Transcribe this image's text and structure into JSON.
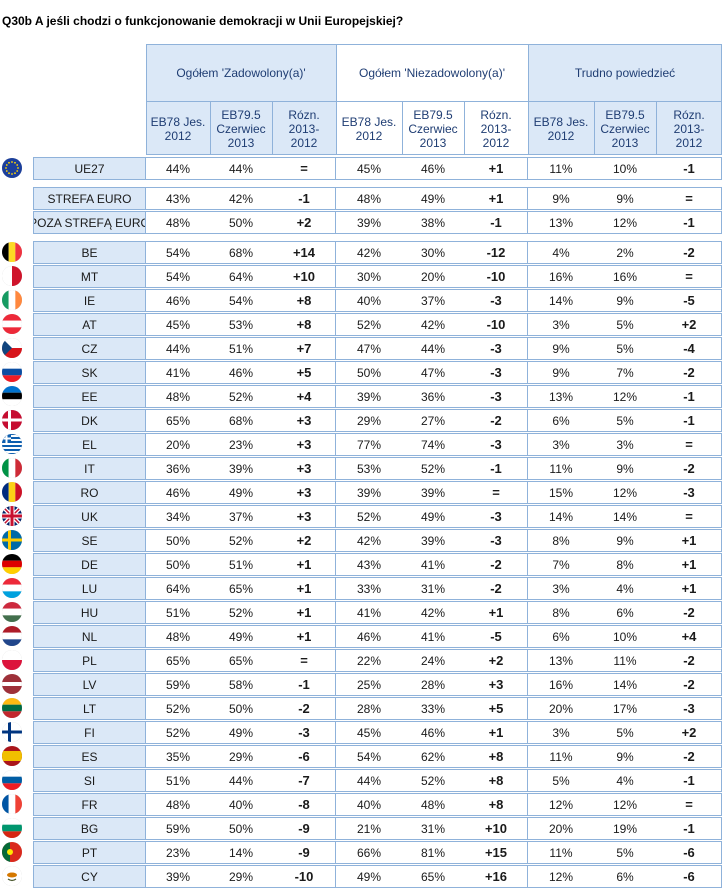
{
  "title": "Q30b A jeśli chodzi o funkcjonowanie demokracji w Unii Europejskiej?",
  "groups": [
    "Ogółem 'Zadowolony(a)'",
    "Ogółem 'Niezadowolony(a)'",
    "Trudno powiedzieć"
  ],
  "subheaders": [
    "EB78 Jes. 2012",
    "EB79.5 Czerwiec 2013",
    "Rózn. 2013-2012",
    "EB78 Jes. 2012",
    "EB79.5 Czerwiec 2013",
    "Rózn. 2013-2012",
    "EB78 Jes. 2012",
    "EB79.5 Czerwiec 2013",
    "Rózn. 2013-2012"
  ],
  "rows": [
    {
      "label": "UE27",
      "flag": "eu",
      "values": [
        "44%",
        "44%",
        "=",
        "45%",
        "46%",
        "+1",
        "11%",
        "10%",
        "-1"
      ]
    },
    {
      "label": "STREFA EURO",
      "flag": "",
      "values": [
        "43%",
        "42%",
        "-1",
        "48%",
        "49%",
        "+1",
        "9%",
        "9%",
        "="
      ]
    },
    {
      "label": "POZA STREFĄ EURO",
      "flag": "",
      "values": [
        "48%",
        "50%",
        "+2",
        "39%",
        "38%",
        "-1",
        "13%",
        "12%",
        "-1"
      ]
    },
    {
      "label": "BE",
      "flag": "be",
      "values": [
        "54%",
        "68%",
        "+14",
        "42%",
        "30%",
        "-12",
        "4%",
        "2%",
        "-2"
      ]
    },
    {
      "label": "MT",
      "flag": "mt",
      "values": [
        "54%",
        "64%",
        "+10",
        "30%",
        "20%",
        "-10",
        "16%",
        "16%",
        "="
      ]
    },
    {
      "label": "IE",
      "flag": "ie",
      "values": [
        "46%",
        "54%",
        "+8",
        "40%",
        "37%",
        "-3",
        "14%",
        "9%",
        "-5"
      ]
    },
    {
      "label": "AT",
      "flag": "at",
      "values": [
        "45%",
        "53%",
        "+8",
        "52%",
        "42%",
        "-10",
        "3%",
        "5%",
        "+2"
      ]
    },
    {
      "label": "CZ",
      "flag": "cz",
      "values": [
        "44%",
        "51%",
        "+7",
        "47%",
        "44%",
        "-3",
        "9%",
        "5%",
        "-4"
      ]
    },
    {
      "label": "SK",
      "flag": "sk",
      "values": [
        "41%",
        "46%",
        "+5",
        "50%",
        "47%",
        "-3",
        "9%",
        "7%",
        "-2"
      ]
    },
    {
      "label": "EE",
      "flag": "ee",
      "values": [
        "48%",
        "52%",
        "+4",
        "39%",
        "36%",
        "-3",
        "13%",
        "12%",
        "-1"
      ]
    },
    {
      "label": "DK",
      "flag": "dk",
      "values": [
        "65%",
        "68%",
        "+3",
        "29%",
        "27%",
        "-2",
        "6%",
        "5%",
        "-1"
      ]
    },
    {
      "label": "EL",
      "flag": "el",
      "values": [
        "20%",
        "23%",
        "+3",
        "77%",
        "74%",
        "-3",
        "3%",
        "3%",
        "="
      ]
    },
    {
      "label": "IT",
      "flag": "it",
      "values": [
        "36%",
        "39%",
        "+3",
        "53%",
        "52%",
        "-1",
        "11%",
        "9%",
        "-2"
      ]
    },
    {
      "label": "RO",
      "flag": "ro",
      "values": [
        "46%",
        "49%",
        "+3",
        "39%",
        "39%",
        "=",
        "15%",
        "12%",
        "-3"
      ]
    },
    {
      "label": "UK",
      "flag": "uk",
      "values": [
        "34%",
        "37%",
        "+3",
        "52%",
        "49%",
        "-3",
        "14%",
        "14%",
        "="
      ]
    },
    {
      "label": "SE",
      "flag": "se",
      "values": [
        "50%",
        "52%",
        "+2",
        "42%",
        "39%",
        "-3",
        "8%",
        "9%",
        "+1"
      ]
    },
    {
      "label": "DE",
      "flag": "de",
      "values": [
        "50%",
        "51%",
        "+1",
        "43%",
        "41%",
        "-2",
        "7%",
        "8%",
        "+1"
      ]
    },
    {
      "label": "LU",
      "flag": "lu",
      "values": [
        "64%",
        "65%",
        "+1",
        "33%",
        "31%",
        "-2",
        "3%",
        "4%",
        "+1"
      ]
    },
    {
      "label": "HU",
      "flag": "hu",
      "values": [
        "51%",
        "52%",
        "+1",
        "41%",
        "42%",
        "+1",
        "8%",
        "6%",
        "-2"
      ]
    },
    {
      "label": "NL",
      "flag": "nl",
      "values": [
        "48%",
        "49%",
        "+1",
        "46%",
        "41%",
        "-5",
        "6%",
        "10%",
        "+4"
      ]
    },
    {
      "label": "PL",
      "flag": "pl",
      "values": [
        "65%",
        "65%",
        "=",
        "22%",
        "24%",
        "+2",
        "13%",
        "11%",
        "-2"
      ]
    },
    {
      "label": "LV",
      "flag": "lv",
      "values": [
        "59%",
        "58%",
        "-1",
        "25%",
        "28%",
        "+3",
        "16%",
        "14%",
        "-2"
      ]
    },
    {
      "label": "LT",
      "flag": "lt",
      "values": [
        "52%",
        "50%",
        "-2",
        "28%",
        "33%",
        "+5",
        "20%",
        "17%",
        "-3"
      ]
    },
    {
      "label": "FI",
      "flag": "fi",
      "values": [
        "52%",
        "49%",
        "-3",
        "45%",
        "46%",
        "+1",
        "3%",
        "5%",
        "+2"
      ]
    },
    {
      "label": "ES",
      "flag": "es",
      "values": [
        "35%",
        "29%",
        "-6",
        "54%",
        "62%",
        "+8",
        "11%",
        "9%",
        "-2"
      ]
    },
    {
      "label": "SI",
      "flag": "si",
      "values": [
        "51%",
        "44%",
        "-7",
        "44%",
        "52%",
        "+8",
        "5%",
        "4%",
        "-1"
      ]
    },
    {
      "label": "FR",
      "flag": "fr",
      "values": [
        "48%",
        "40%",
        "-8",
        "40%",
        "48%",
        "+8",
        "12%",
        "12%",
        "="
      ]
    },
    {
      "label": "BG",
      "flag": "bg",
      "values": [
        "59%",
        "50%",
        "-9",
        "21%",
        "31%",
        "+10",
        "20%",
        "19%",
        "-1"
      ]
    },
    {
      "label": "PT",
      "flag": "pt",
      "values": [
        "23%",
        "14%",
        "-9",
        "66%",
        "81%",
        "+15",
        "11%",
        "5%",
        "-6"
      ]
    },
    {
      "label": "CY",
      "flag": "cy",
      "values": [
        "39%",
        "29%",
        "-10",
        "49%",
        "65%",
        "+16",
        "12%",
        "6%",
        "-6"
      ]
    }
  ],
  "colors": {
    "header_bg": "#dbe8f7",
    "border": "#8fb2da",
    "header_text": "#1f3d73"
  }
}
